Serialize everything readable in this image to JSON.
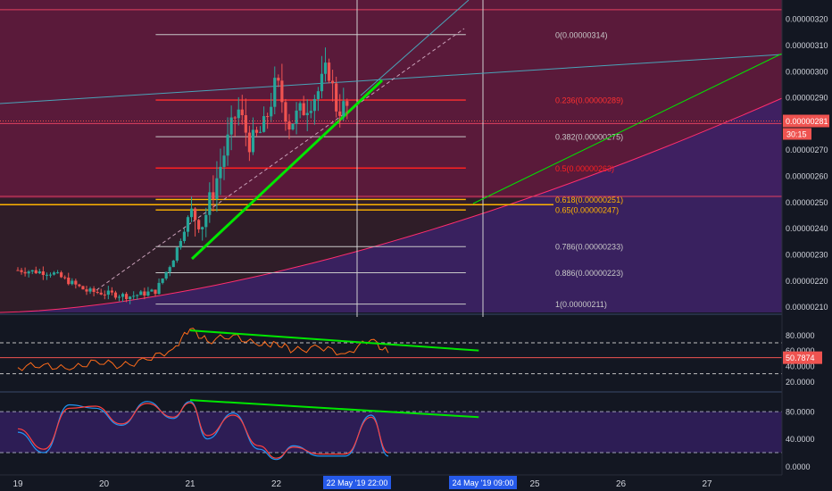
{
  "chart_data": [
    {
      "type": "candlestick",
      "panel": "price",
      "y_range": [
        2.085e-06,
        3.245e-06
      ],
      "price_ticks": [
        "0.00000320",
        "0.00000310",
        "0.00000300",
        "0.00000290",
        "0.00000280",
        "0.00000270",
        "0.00000260",
        "0.00000250",
        "0.00000240",
        "0.00000230",
        "0.00000220",
        "0.00000210"
      ],
      "x_range": [
        18.9,
        27.95
      ],
      "x_ticks": [
        {
          "x": 19,
          "label": "19"
        },
        {
          "x": 20,
          "label": "20"
        },
        {
          "x": 21,
          "label": "21"
        },
        {
          "x": 22,
          "label": "22"
        },
        {
          "x": 25,
          "label": "25"
        },
        {
          "x": 26,
          "label": "26"
        },
        {
          "x": 27,
          "label": "27"
        }
      ],
      "crosshair_time_labels": [
        {
          "x": 23.58,
          "label": "22 May '19  22:00"
        },
        {
          "x": 24.45,
          "label": "24 May '19  09:00"
        }
      ],
      "last_price": {
        "value": 2.81e-06,
        "label": "0.00000281",
        "countdown": "30:15",
        "color": "#ef5350"
      },
      "fibonacci": {
        "x_start": 20.6,
        "x_end": 24.2,
        "levels": [
          {
            "label": "0(0.00000314)",
            "price": 3.14e-06,
            "color": "#c8c8c8"
          },
          {
            "label": "0.236(0.00000289)",
            "price": 2.89e-06,
            "color": "#ff3030"
          },
          {
            "label": "0.382(0.00000275)",
            "price": 2.75e-06,
            "color": "#c8c8c8"
          },
          {
            "label": "0.5(0.00000263)",
            "price": 2.63e-06,
            "color": "#ff2020"
          },
          {
            "label": "0.618(0.00000251)",
            "price": 2.51e-06,
            "color": "#ffb300"
          },
          {
            "label": "0.65(0.00000247)",
            "price": 2.47e-06,
            "color": "#ffb300"
          },
          {
            "label": "0.786(0.00000233)",
            "price": 2.33e-06,
            "color": "#c8c8c8"
          },
          {
            "label": "0.886(0.00000223)",
            "price": 2.23e-06,
            "color": "#c8c8c8"
          },
          {
            "label": "1(0.00000211)",
            "price": 2.11e-06,
            "color": "#c8c8c8"
          }
        ]
      },
      "horizontal_lines": [
        {
          "price": 3.235e-06,
          "color": "#e04060"
        },
        {
          "price": 2.8e-06,
          "color": "#e04060"
        }
      ],
      "support_band": {
        "price": 2.49e-06,
        "color": "#ffb300"
      },
      "colors": {
        "up": "#26a69a",
        "down": "#ef5350",
        "trend": "#00e600",
        "channel": "#4aa3b8",
        "curve": "#ff2d6e"
      }
    },
    {
      "type": "line",
      "panel": "rsi",
      "ticks": [
        "80.0000",
        "60.0000",
        "40.0000",
        "20.0000"
      ],
      "y_range": [
        10,
        100
      ],
      "bands": [
        70,
        30
      ],
      "last_value": {
        "value": 50.7874,
        "label": "50.7874"
      },
      "divergence_line": {
        "from": [
          21.0,
          86
        ],
        "to": [
          24.35,
          60
        ]
      },
      "x": [
        19.0,
        19.3,
        19.6,
        19.9,
        20.2,
        20.5,
        20.8,
        21.0,
        21.2,
        21.5,
        21.8,
        22.0,
        22.2,
        22.5,
        22.8,
        23.1,
        23.3
      ],
      "values": [
        38,
        42,
        35,
        47,
        40,
        48,
        62,
        88,
        72,
        80,
        66,
        70,
        60,
        64,
        56,
        74,
        57
      ],
      "color": "#ff6b1a"
    },
    {
      "type": "line",
      "panel": "stoch_rsi",
      "ticks": [
        "80.0000",
        "40.0000",
        "0.0000"
      ],
      "y_range": [
        -10,
        105
      ],
      "bands": [
        80,
        20
      ],
      "divergence_line": {
        "from": [
          21.0,
          97
        ],
        "to": [
          24.35,
          72
        ]
      },
      "x": [
        19.0,
        19.3,
        19.6,
        19.9,
        20.2,
        20.5,
        20.8,
        21.0,
        21.2,
        21.5,
        21.8,
        22.0,
        22.2,
        22.5,
        22.8,
        23.1,
        23.3
      ],
      "series": [
        {
          "color": "#2196f3",
          "values": [
            50,
            20,
            90,
            85,
            60,
            95,
            70,
            95,
            40,
            78,
            25,
            10,
            30,
            15,
            15,
            75,
            15
          ]
        },
        {
          "color": "#ff4040",
          "values": [
            55,
            25,
            85,
            88,
            62,
            92,
            72,
            93,
            45,
            75,
            30,
            12,
            28,
            18,
            18,
            72,
            20
          ]
        }
      ]
    }
  ]
}
